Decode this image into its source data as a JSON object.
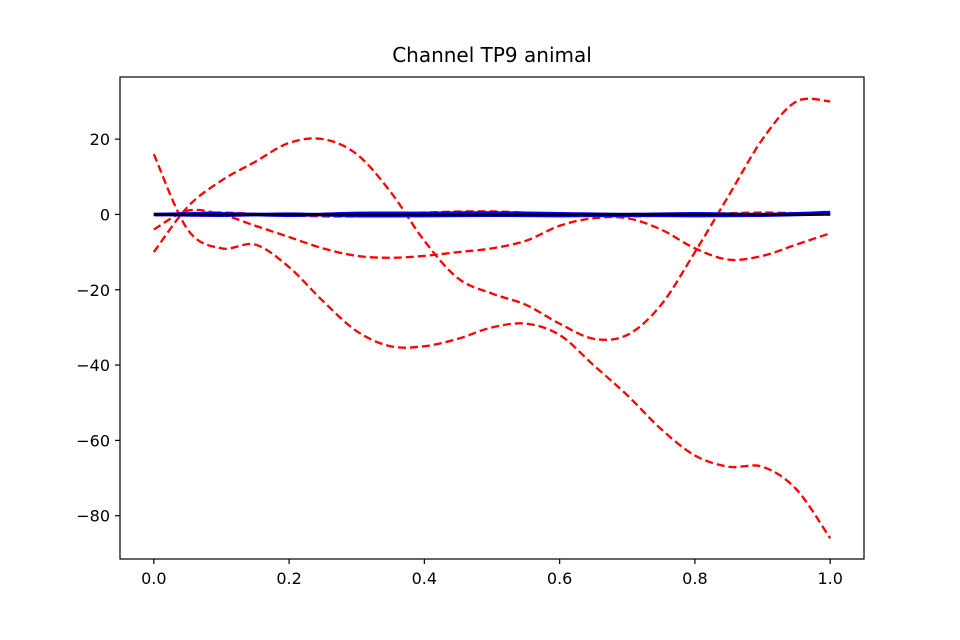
{
  "chart_data": {
    "type": "line",
    "title": "Channel TP9 animal",
    "xlabel": "",
    "ylabel": "",
    "xlim": [
      -0.05,
      1.05
    ],
    "ylim": [
      -91.5,
      36.5
    ],
    "grid": false,
    "legend": "none",
    "x_ticks": [
      0.0,
      0.2,
      0.4,
      0.6,
      0.8,
      1.0
    ],
    "x_tick_labels": [
      "0.0",
      "0.2",
      "0.4",
      "0.6",
      "0.8",
      "1.0"
    ],
    "y_ticks": [
      20,
      0,
      -20,
      -40,
      -60,
      -80
    ],
    "y_tick_labels": [
      "20",
      "0",
      "−20",
      "−40",
      "−60",
      "−80"
    ],
    "colors": {
      "red_series": "#ff0000",
      "blue_series": "#0000ff",
      "black_series": "#000000"
    },
    "series": [
      {
        "style": "red-dashed",
        "x": [
          0.0,
          0.05,
          0.1,
          0.15,
          0.2,
          0.25,
          0.3,
          0.35,
          0.4,
          0.45,
          0.5,
          0.55,
          0.6,
          0.65,
          0.7,
          0.75,
          0.8,
          0.85,
          0.9,
          0.95,
          1.0
        ],
        "y": [
          -10,
          2,
          9,
          14,
          19,
          20,
          16,
          6,
          -7,
          -17,
          -21,
          -24,
          -29,
          -33,
          -32,
          -24,
          -10,
          5,
          20,
          30,
          30
        ]
      },
      {
        "style": "red-dashed",
        "x": [
          0.0,
          0.05,
          0.1,
          0.15,
          0.2,
          0.25,
          0.3,
          0.35,
          0.4,
          0.45,
          0.5,
          0.55,
          0.6,
          0.65,
          0.7,
          0.75,
          0.8,
          0.85,
          0.9,
          0.95,
          1.0
        ],
        "y": [
          16,
          -4,
          -9,
          -8,
          -14,
          -23,
          -31,
          -35,
          -35,
          -33,
          -30,
          -29,
          -32,
          -40,
          -48,
          -57,
          -64,
          -67,
          -67,
          -73,
          -86
        ]
      },
      {
        "style": "red-dashed",
        "x": [
          0.0,
          0.05,
          0.1,
          0.15,
          0.2,
          0.25,
          0.3,
          0.35,
          0.4,
          0.45,
          0.5,
          0.55,
          0.6,
          0.65,
          0.7,
          0.75,
          0.8,
          0.85,
          0.9,
          0.95,
          1.0
        ],
        "y": [
          -4,
          1,
          0,
          -3,
          -6,
          -9,
          -11,
          -11.5,
          -11,
          -10,
          -9,
          -7,
          -3,
          -1,
          -1,
          -4,
          -9,
          -12,
          -11,
          -8,
          -5
        ]
      },
      {
        "style": "red-dashed",
        "x": [
          0.0,
          0.1,
          0.2,
          0.3,
          0.4,
          0.5,
          0.6,
          0.7,
          0.8,
          0.9,
          1.0
        ],
        "y": [
          0,
          0.5,
          -0.3,
          -0.5,
          0.5,
          0.8,
          0,
          -0.5,
          0,
          0.5,
          0
        ]
      },
      {
        "style": "blue-solid",
        "x": [
          0.0,
          0.1,
          0.2,
          0.3,
          0.4,
          0.5,
          0.6,
          0.7,
          0.8,
          0.9,
          1.0
        ],
        "y": [
          0,
          0.2,
          -0.2,
          0.3,
          0.3,
          0.4,
          0.2,
          0,
          0.2,
          0,
          0.5
        ]
      },
      {
        "style": "blue-solid",
        "x": [
          0.0,
          0.1,
          0.2,
          0.3,
          0.4,
          0.5,
          0.6,
          0.7,
          0.8,
          0.9,
          1.0
        ],
        "y": [
          0,
          -0.2,
          0.1,
          -0.3,
          -0.3,
          -0.2,
          -0.3,
          -0.2,
          -0.3,
          -0.2,
          0.2
        ]
      },
      {
        "style": "black-solid",
        "x": [
          0.0,
          0.1,
          0.2,
          0.3,
          0.4,
          0.5,
          0.6,
          0.7,
          0.8,
          0.9,
          1.0
        ],
        "y": [
          0,
          0,
          0,
          0,
          0,
          0,
          0,
          0,
          0,
          0,
          0
        ]
      }
    ]
  }
}
